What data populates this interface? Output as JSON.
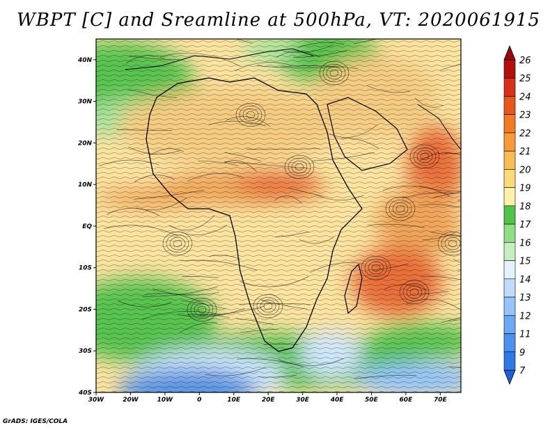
{
  "title": "WBPT [C] and Sreamline at 500hPa, VT: 2020061915",
  "credit": "GrADS: IGES/COLA",
  "map": {
    "lon_range": [
      -30,
      76
    ],
    "lat_range": [
      -40,
      45
    ],
    "lon_ticks": [
      {
        "value": -30,
        "label": "30W"
      },
      {
        "value": -20,
        "label": "20W"
      },
      {
        "value": -10,
        "label": "10W"
      },
      {
        "value": 0,
        "label": "0"
      },
      {
        "value": 10,
        "label": "10E"
      },
      {
        "value": 20,
        "label": "20E"
      },
      {
        "value": 30,
        "label": "30E"
      },
      {
        "value": 40,
        "label": "40E"
      },
      {
        "value": 50,
        "label": "50E"
      },
      {
        "value": 60,
        "label": "60E"
      },
      {
        "value": 70,
        "label": "70E"
      }
    ],
    "lat_ticks": [
      {
        "value": 40,
        "label": "40N"
      },
      {
        "value": 30,
        "label": "30N"
      },
      {
        "value": 20,
        "label": "20N"
      },
      {
        "value": 10,
        "label": "10N"
      },
      {
        "value": 0,
        "label": "EQ"
      },
      {
        "value": -10,
        "label": "10S"
      },
      {
        "value": -20,
        "label": "20S"
      },
      {
        "value": -30,
        "label": "30S"
      },
      {
        "value": -40,
        "label": "40S"
      }
    ]
  },
  "colorbar": {
    "labels": [
      "7",
      "9",
      "11",
      "12",
      "13",
      "14",
      "15",
      "16",
      "17",
      "18",
      "19",
      "20",
      "21",
      "22",
      "23",
      "24",
      "25",
      "26"
    ],
    "colors": [
      "#1e5fd8",
      "#2f79e6",
      "#4a91f0",
      "#6aa9f5",
      "#96c4f8",
      "#c1dcfa",
      "#e3f2fd",
      "#c6efc0",
      "#8fdd84",
      "#4fc34a",
      "#fff1a8",
      "#fcd97a",
      "#fbbc55",
      "#f79a37",
      "#f27a25",
      "#e9561b",
      "#d9301a",
      "#b40f0f",
      "#9a0a0a"
    ]
  },
  "field_colors": {
    "cold_blue": "#5b95e2",
    "light_blue": "#cfe6fa",
    "light_green": "#a9e39c",
    "green": "#58c34f",
    "pale_yellow": "#fbe3a0",
    "tan": "#f5cc82",
    "orange": "#f0a65a",
    "red_orange": "#e9703a"
  }
}
